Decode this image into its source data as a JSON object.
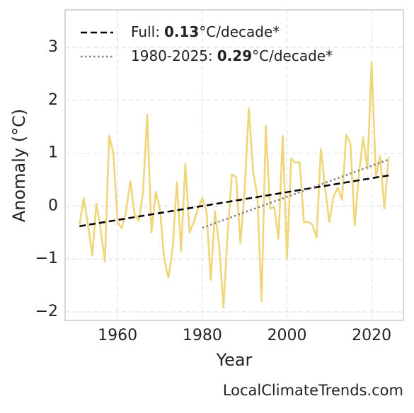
{
  "chart_data": {
    "type": "line",
    "x_label": "Year",
    "y_label": "Anomaly (°C)",
    "x": [
      1951,
      1952,
      1953,
      1954,
      1955,
      1956,
      1957,
      1958,
      1959,
      1960,
      1961,
      1962,
      1963,
      1964,
      1965,
      1966,
      1967,
      1968,
      1969,
      1970,
      1971,
      1972,
      1973,
      1974,
      1975,
      1976,
      1977,
      1978,
      1979,
      1980,
      1981,
      1982,
      1983,
      1984,
      1985,
      1986,
      1987,
      1988,
      1989,
      1990,
      1991,
      1992,
      1993,
      1994,
      1995,
      1996,
      1997,
      1998,
      1999,
      2000,
      2001,
      2002,
      2003,
      2004,
      2005,
      2006,
      2007,
      2008,
      2009,
      2010,
      2011,
      2012,
      2013,
      2014,
      2015,
      2016,
      2017,
      2018,
      2019,
      2020,
      2021,
      2022,
      2023,
      2024
    ],
    "series": [
      {
        "color": "#f0d67a",
        "values": [
          -0.35,
          0.15,
          -0.35,
          -0.93,
          0.05,
          -0.45,
          -1.05,
          1.33,
          1.0,
          -0.3,
          -0.42,
          -0.1,
          0.47,
          -0.15,
          -0.28,
          0.25,
          1.73,
          -0.5,
          0.27,
          -0.05,
          -1.0,
          -1.35,
          -0.8,
          0.45,
          -0.85,
          0.8,
          -0.5,
          -0.3,
          -0.05,
          0.15,
          -0.1,
          -1.4,
          -0.1,
          -0.75,
          -1.92,
          -0.5,
          0.6,
          0.55,
          -0.7,
          0.3,
          1.85,
          0.65,
          0.2,
          -1.8,
          1.52,
          -0.05,
          -0.02,
          -0.62,
          1.33,
          -1.0,
          0.9,
          0.82,
          0.83,
          -0.3,
          -0.3,
          -0.35,
          -0.6,
          1.08,
          0.35,
          -0.3,
          0.18,
          0.35,
          0.12,
          1.35,
          1.18,
          -0.37,
          0.6,
          1.3,
          0.7,
          2.72,
          0.55,
          0.95,
          -0.05,
          0.92
        ]
      },
      {
        "name": "Full:",
        "slope": 0.13,
        "unit": "°C/decade*",
        "color": "#000000",
        "style": "dashed",
        "x": [
          1951,
          2024
        ],
        "values": [
          -0.38,
          0.58
        ]
      },
      {
        "name": "1980-2025:",
        "slope": 0.29,
        "unit": "°C/decade*",
        "color": "#808080",
        "style": "dotted",
        "x": [
          1980,
          2024
        ],
        "values": [
          -0.41,
          0.88
        ]
      }
    ],
    "xlim": [
      1947.6,
      2027.5
    ],
    "ylim": [
      -2.16,
      3.71
    ],
    "xticks": [
      1960,
      1980,
      2000,
      2020
    ],
    "yticks": [
      {
        "value": -2,
        "label": "−2"
      },
      {
        "value": -1,
        "label": "−1"
      },
      0,
      1,
      2,
      3
    ],
    "grid": true,
    "legend": "upper left",
    "footer": "LocalClimateTrends.com"
  }
}
